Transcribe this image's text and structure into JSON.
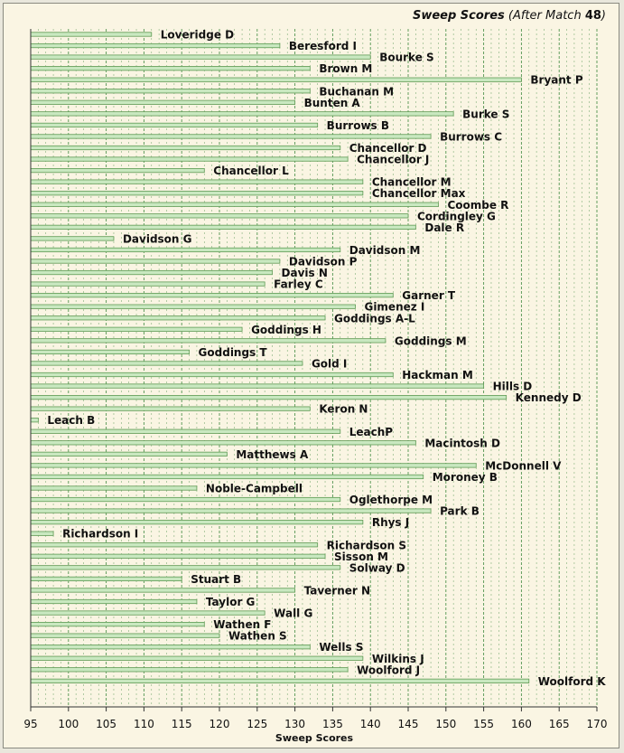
{
  "title": {
    "main": "Sweep Scores",
    "sub_prefix": "(After Match",
    "match": "48",
    "sub_suffix": ")"
  },
  "chart_data": {
    "type": "bar",
    "orientation": "horizontal",
    "title": "Sweep Scores (After Match 48)",
    "xlabel": "Sweep Scores",
    "ylabel": "",
    "xlim": [
      95,
      170
    ],
    "xticks": [
      95,
      100,
      105,
      110,
      115,
      120,
      125,
      130,
      135,
      140,
      145,
      150,
      155,
      160,
      165,
      170
    ],
    "grid": true,
    "colors": {
      "bar": "#c9e8c0",
      "bar_edge": "#5f9a54",
      "grid": "#3f8a3f",
      "background": "#faf5e3"
    },
    "categories": [
      "Loveridge D",
      "Beresford I",
      "Bourke S",
      "Brown M",
      "Bryant P",
      "Buchanan M",
      "Bunten A",
      "Burke S",
      "Burrows B",
      "Burrows C",
      "Chancellor D",
      "Chancellor J",
      "Chancellor L",
      "Chancellor M",
      "Chancellor Max",
      "Coombe R",
      "Cordingley G",
      "Dale R",
      "Davidson G",
      "Davidson M",
      "Davidson P",
      "Davis N",
      "Farley C",
      "Garner T",
      "Gimenez I",
      "Goddings A-L",
      "Goddings H",
      "Goddings M",
      "Goddings T",
      "Gold I",
      "Hackman M",
      "Hills D",
      "Kennedy D",
      "Keron N",
      "Leach B",
      "LeachP",
      "Macintosh D",
      "Matthews A",
      "McDonnell V",
      "Moroney B",
      "Noble-Campbell",
      "Oglethorpe M",
      "Park B",
      "Rhys J",
      "Richardson I",
      "Richardson S",
      "Sisson M",
      "Solway D",
      "Stuart B",
      "Taverner N",
      "Taylor G",
      "Wall G",
      "Wathen F",
      "Wathen S",
      "Wells S",
      "Wilkins J",
      "Woolford J",
      "Woolford K"
    ],
    "values": [
      111,
      128,
      140,
      132,
      160,
      132,
      130,
      151,
      133,
      148,
      136,
      137,
      118,
      139,
      139,
      149,
      145,
      146,
      106,
      136,
      128,
      127,
      126,
      143,
      138,
      134,
      123,
      142,
      116,
      131,
      143,
      155,
      158,
      132,
      96,
      136,
      146,
      121,
      154,
      147,
      117,
      136,
      148,
      139,
      98,
      133,
      134,
      136,
      115,
      130,
      117,
      126,
      118,
      120,
      132,
      139,
      137,
      161
    ]
  }
}
